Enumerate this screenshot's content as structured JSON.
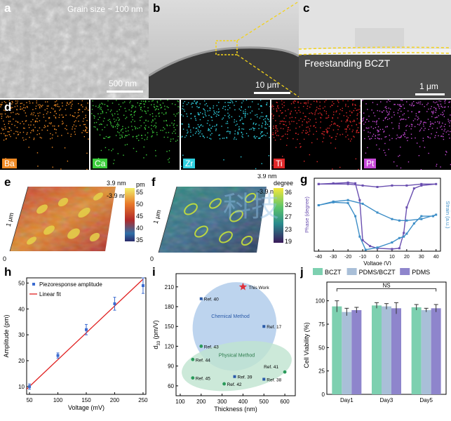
{
  "panel_letters": {
    "a": "a",
    "b": "b",
    "c": "c",
    "d": "d",
    "e": "e",
    "f": "f",
    "g": "g",
    "h": "h",
    "i": "i",
    "j": "j"
  },
  "sem": {
    "a_caption": "Grain size ~ 100 nm",
    "a_scale": "500 nm",
    "b_scale": "10 μm",
    "c_caption": "Freestanding BCZT",
    "c_scale": "1 μm"
  },
  "eds": [
    {
      "label": "Ba",
      "color": "#f08a24"
    },
    {
      "label": "Ca",
      "color": "#3ccc3c"
    },
    {
      "label": "Zr",
      "color": "#2fd0e0"
    },
    {
      "label": "Ti",
      "color": "#e0282a"
    },
    {
      "label": "Pt",
      "color": "#c84ad8"
    }
  ],
  "afm_e": {
    "z_top": "3.9 nm",
    "z_bot": "-3.9 nm",
    "y_top": "1 μm",
    "y_zero": "0",
    "cb_unit": "pm",
    "cb_ticks": [
      "55",
      "50",
      "45",
      "40",
      "35"
    ]
  },
  "afm_f": {
    "z_top": "3.9 nm",
    "z_bot": "-3.9 nm",
    "y_top": "1 μm",
    "y_zero": "0",
    "cb_unit": "degree",
    "cb_ticks": [
      "36",
      "32",
      "27",
      "23",
      "19"
    ]
  },
  "watermark": "科技",
  "chart_data": [
    {
      "panel": "g",
      "type": "line",
      "xlabel": "Voltage (V)",
      "ylabel_left": "Phase (degree)",
      "ylabel_right": "Strain (a.u.)",
      "xticks": [
        "-40",
        "-30",
        "-20",
        "-10",
        "0",
        "10",
        "20",
        "30",
        "40"
      ],
      "xlim": [
        -43,
        43
      ],
      "series": [
        {
          "color": "#6a4fb0",
          "x": [
            -40,
            -30,
            -20,
            -15,
            -12,
            -10,
            -5,
            0,
            10,
            15,
            18,
            20,
            25,
            30,
            40,
            30,
            20,
            10,
            0,
            -10,
            -20,
            -40
          ],
          "y": [
            0.92,
            0.93,
            0.94,
            0.93,
            0.7,
            0.15,
            0.07,
            0.04,
            0.03,
            0.04,
            0.25,
            0.6,
            0.86,
            0.9,
            0.92,
            0.92,
            0.9,
            0.9,
            0.88,
            0.9,
            0.92,
            0.92
          ]
        },
        {
          "color": "#3d8ec7",
          "x": [
            -40,
            -30,
            -20,
            -15,
            -12,
            -8,
            0,
            10,
            15,
            18,
            20,
            25,
            30,
            38,
            40,
            30,
            20,
            15,
            10,
            0,
            -10,
            -20,
            -30,
            -40
          ],
          "y": [
            0.63,
            0.67,
            0.66,
            0.48,
            0.2,
            0.02,
            0.05,
            0.12,
            0.18,
            0.2,
            0.24,
            0.38,
            0.48,
            0.48,
            0.5,
            0.44,
            0.42,
            0.42,
            0.44,
            0.53,
            0.65,
            0.7,
            0.68,
            0.63
          ]
        }
      ]
    },
    {
      "panel": "h",
      "type": "scatter",
      "xlabel": "Voltage (mV)",
      "ylabel": "Amplitude (pm)",
      "xlim": [
        45,
        255
      ],
      "ylim": [
        7,
        52
      ],
      "xticks": [
        50,
        100,
        150,
        200,
        250
      ],
      "yticks": [
        10,
        20,
        30,
        40,
        50
      ],
      "legend": [
        "Piezoresponse amplitude",
        "Linear fit"
      ],
      "points": {
        "x": [
          50,
          100,
          150,
          200,
          250
        ],
        "y": [
          10,
          22,
          32,
          42,
          49
        ],
        "err": [
          1,
          1,
          2,
          2.5,
          3
        ]
      },
      "fit": {
        "x": [
          45,
          250
        ],
        "y": [
          9,
          51.5
        ]
      }
    },
    {
      "panel": "i",
      "type": "scatter",
      "xlabel": "Thickness (nm)",
      "ylabel": "d",
      "ylabel_sub": "33",
      "ylabel_unit": "(pm/V)",
      "xlim": [
        80,
        650
      ],
      "ylim": [
        45,
        230
      ],
      "xticks": [
        100,
        200,
        300,
        400,
        500,
        600
      ],
      "yticks": [
        60,
        90,
        120,
        150,
        180,
        210
      ],
      "region_labels": [
        "Chemical Method",
        "Physical Method"
      ],
      "chemical": [
        {
          "x": 200,
          "y": 192,
          "label": "Ref. 40"
        },
        {
          "x": 500,
          "y": 150,
          "label": "Ref. 17"
        },
        {
          "x": 360,
          "y": 74,
          "label": "Ref. 39"
        },
        {
          "x": 500,
          "y": 70,
          "label": "Ref. 38"
        }
      ],
      "physical": [
        {
          "x": 200,
          "y": 120,
          "label": "Ref. 43"
        },
        {
          "x": 160,
          "y": 100,
          "label": "Ref. 44"
        },
        {
          "x": 160,
          "y": 72,
          "label": "Ref. 45"
        },
        {
          "x": 310,
          "y": 63,
          "label": "Ref. 42"
        },
        {
          "x": 600,
          "y": 81,
          "label": "Ref. 41"
        }
      ],
      "this_work": {
        "x": 400,
        "y": 210,
        "label": "This Work"
      }
    },
    {
      "panel": "j",
      "type": "bar",
      "ylabel": "Cell Viability (%)",
      "ylim": [
        0,
        120
      ],
      "yticks": [
        0,
        25,
        50,
        75,
        100
      ],
      "categories": [
        "Day1",
        "Day3",
        "Day5"
      ],
      "annotation": "NS",
      "series": [
        {
          "name": "BCZT",
          "color": "#7dd0b0",
          "values": [
            94,
            95,
            93
          ],
          "err": [
            6,
            3,
            3
          ]
        },
        {
          "name": "PDMS/BCZT",
          "color": "#a9bfd8",
          "values": [
            88,
            94,
            90
          ],
          "err": [
            4,
            3,
            2
          ]
        },
        {
          "name": "PDMS",
          "color": "#8e85cc",
          "values": [
            90,
            92,
            92
          ],
          "err": [
            3,
            6,
            4
          ]
        }
      ]
    }
  ]
}
